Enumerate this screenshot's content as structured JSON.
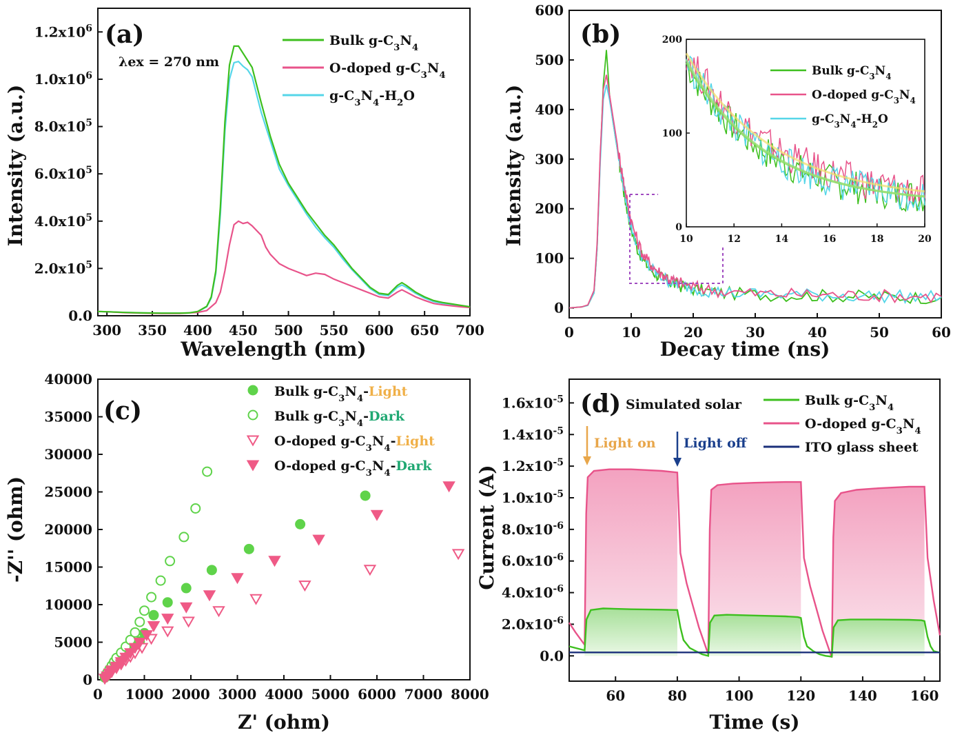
{
  "chart_data": [
    {
      "type": "line",
      "panel_label": "(a)",
      "xlabel": "Wavelength (nm)",
      "ylabel": "Intensity (a.u.)",
      "xlim": [
        290,
        700
      ],
      "ylim": [
        0,
        1300000
      ],
      "xticks": [
        "300",
        "350",
        "400",
        "450",
        "500",
        "550",
        "600",
        "650",
        "700"
      ],
      "yticks": [
        "0.0",
        "2.0x10^5",
        "4.0x10^5",
        "6.0x10^5",
        "8.0x10^5",
        "1.0x10^6",
        "1.2x10^6"
      ],
      "annotation": "λex = 270 nm",
      "series": [
        {
          "name": "Bulk g-C3N4",
          "color": "#3dbf1e",
          "x": [
            290,
            300,
            320,
            340,
            360,
            380,
            390,
            400,
            410,
            415,
            420,
            425,
            430,
            435,
            440,
            445,
            450,
            455,
            460,
            470,
            480,
            490,
            500,
            510,
            520,
            530,
            540,
            550,
            560,
            570,
            580,
            590,
            600,
            610,
            620,
            625,
            630,
            640,
            650,
            660,
            670,
            680,
            690,
            700
          ],
          "y": [
            18000,
            17000,
            14000,
            12000,
            11000,
            11000,
            12000,
            18000,
            40000,
            80000,
            190000,
            460000,
            820000,
            1060000,
            1140000,
            1140000,
            1110000,
            1080000,
            1050000,
            900000,
            760000,
            640000,
            560000,
            500000,
            440000,
            390000,
            340000,
            300000,
            250000,
            200000,
            160000,
            120000,
            95000,
            90000,
            128000,
            140000,
            128000,
            100000,
            80000,
            64000,
            56000,
            50000,
            44000,
            38000
          ]
        },
        {
          "name": "O-doped g-C3N4",
          "color": "#e8538a",
          "x": [
            290,
            300,
            320,
            340,
            360,
            380,
            400,
            410,
            420,
            425,
            430,
            435,
            440,
            445,
            450,
            455,
            460,
            470,
            475,
            480,
            490,
            500,
            510,
            520,
            530,
            540,
            550,
            560,
            570,
            580,
            590,
            600,
            610,
            620,
            625,
            630,
            640,
            650,
            660,
            670,
            680,
            690,
            700
          ],
          "y": [
            18000,
            17000,
            13000,
            11000,
            10000,
            10000,
            14000,
            22000,
            55000,
            100000,
            190000,
            300000,
            385000,
            400000,
            390000,
            395000,
            380000,
            340000,
            290000,
            260000,
            220000,
            200000,
            185000,
            170000,
            180000,
            175000,
            155000,
            140000,
            125000,
            110000,
            95000,
            80000,
            75000,
            100000,
            110000,
            100000,
            80000,
            65000,
            52000,
            46000,
            42000,
            38000,
            35000
          ]
        },
        {
          "name": "g-C3N4-H2O",
          "color": "#55d6e8",
          "x": [
            290,
            300,
            320,
            340,
            360,
            380,
            390,
            400,
            410,
            415,
            420,
            425,
            430,
            435,
            440,
            445,
            450,
            455,
            460,
            470,
            480,
            490,
            500,
            510,
            520,
            530,
            540,
            550,
            560,
            570,
            580,
            590,
            600,
            610,
            620,
            625,
            630,
            640,
            650,
            660,
            670,
            680,
            690,
            700
          ],
          "y": [
            18000,
            17000,
            14000,
            12000,
            11000,
            11000,
            12000,
            17000,
            38000,
            75000,
            180000,
            430000,
            780000,
            1000000,
            1070000,
            1075000,
            1055000,
            1040000,
            1010000,
            860000,
            740000,
            620000,
            550000,
            490000,
            430000,
            375000,
            330000,
            290000,
            240000,
            195000,
            155000,
            115000,
            90000,
            85000,
            120000,
            130000,
            120000,
            95000,
            75000,
            60000,
            52000,
            47000,
            42000,
            37000
          ]
        }
      ]
    },
    {
      "type": "line",
      "panel_label": "(b)",
      "xlabel": "Decay time (ns)",
      "ylabel": "Intensity (a.u.)",
      "xlim": [
        0,
        60
      ],
      "ylim": [
        -20,
        600
      ],
      "xticks": [
        "0",
        "10",
        "20",
        "30",
        "40",
        "50",
        "60"
      ],
      "yticks": [
        "0",
        "100",
        "200",
        "300",
        "400",
        "500",
        "600"
      ],
      "series": [
        {
          "name": "Bulk g-C3N4",
          "color": "#3dbf1e",
          "x": [
            0,
            2,
            3,
            4,
            4.5,
            5,
            5.5,
            6,
            6.5,
            7,
            7.5,
            8,
            8.5,
            9,
            9.5,
            10,
            11,
            12,
            13,
            14,
            15,
            16,
            17,
            18,
            20,
            22,
            25,
            30,
            35,
            40,
            45,
            50,
            55,
            60
          ],
          "y": [
            0,
            2,
            5,
            30,
            120,
            300,
            450,
            520,
            430,
            380,
            340,
            300,
            260,
            220,
            190,
            160,
            120,
            95,
            80,
            68,
            60,
            54,
            48,
            44,
            38,
            34,
            30,
            27,
            26,
            25,
            24,
            23,
            22,
            21
          ]
        },
        {
          "name": "O-doped g-C3N4",
          "color": "#e8538a",
          "x": [
            0,
            2,
            3,
            4,
            4.5,
            5,
            5.5,
            6,
            6.5,
            7,
            7.5,
            8,
            8.5,
            9,
            9.5,
            10,
            11,
            12,
            13,
            14,
            15,
            16,
            17,
            18,
            20,
            22,
            25,
            30,
            35,
            40,
            45,
            50,
            55,
            60
          ],
          "y": [
            0,
            2,
            6,
            35,
            130,
            310,
            440,
            470,
            430,
            390,
            350,
            310,
            275,
            240,
            205,
            175,
            135,
            105,
            90,
            78,
            68,
            60,
            54,
            50,
            43,
            38,
            33,
            29,
            28,
            27,
            26,
            25,
            24,
            23
          ]
        },
        {
          "name": "g-C3N4-H2O",
          "color": "#55d6e8",
          "x": [
            0,
            2,
            3,
            4,
            4.5,
            5,
            5.5,
            6,
            6.5,
            7,
            7.5,
            8,
            8.5,
            9,
            9.5,
            10,
            11,
            12,
            13,
            14,
            15,
            16,
            17,
            18,
            20,
            22,
            25,
            30,
            35,
            40,
            45,
            50,
            55,
            60
          ],
          "y": [
            0,
            2,
            5,
            30,
            120,
            290,
            420,
            450,
            420,
            380,
            340,
            300,
            265,
            230,
            195,
            165,
            125,
            98,
            82,
            70,
            62,
            55,
            50,
            46,
            40,
            35,
            31,
            28,
            27,
            26,
            25,
            24,
            23,
            22
          ]
        }
      ],
      "inset": {
        "xlim": [
          10,
          20
        ],
        "ylim": [
          0,
          200
        ],
        "xticks": [
          "10",
          "12",
          "14",
          "16",
          "18",
          "20"
        ],
        "yticks": [
          "0",
          "100",
          "200"
        ],
        "series_names": [
          "Bulk g-C3N4",
          "O-doped g-C3N4",
          "g-C3N4-H2O"
        ],
        "decay": [
          {
            "name": "Bulk g-C3N4",
            "y0": 175,
            "tau": 3.3,
            "offset": 25
          },
          {
            "name": "O-doped g-C3N4",
            "y0": 185,
            "tau": 3.6,
            "offset": 28
          },
          {
            "name": "g-C3N4-H2O",
            "y0": 178,
            "tau": 3.3,
            "offset": 25
          }
        ]
      }
    },
    {
      "type": "scatter",
      "panel_label": "(c)",
      "xlabel": "Z' (ohm)",
      "ylabel": "-Z'' (ohm)",
      "xlim": [
        0,
        8000
      ],
      "ylim": [
        0,
        40000
      ],
      "xticks": [
        "0",
        "1000",
        "2000",
        "3000",
        "4000",
        "5000",
        "6000",
        "7000",
        "8000"
      ],
      "yticks": [
        "0",
        "5000",
        "10000",
        "15000",
        "20000",
        "25000",
        "30000",
        "35000",
        "40000"
      ],
      "series": [
        {
          "name": "Bulk g-C3N4-Light",
          "marker": "circle-filled",
          "color": "#5fd34a",
          "x": [
            150,
            200,
            250,
            300,
            400,
            500,
            600,
            700,
            800,
            900,
            1000,
            1200,
            1500,
            1900,
            2450,
            3250,
            4350,
            5750
          ],
          "y": [
            300,
            700,
            1100,
            1500,
            2100,
            2700,
            3300,
            3900,
            4500,
            5100,
            6200,
            8600,
            10300,
            12200,
            14600,
            17400,
            20700,
            24500
          ]
        },
        {
          "name": "Bulk g-C3N4-Dark",
          "marker": "circle-open",
          "color": "#5fd34a",
          "x": [
            150,
            200,
            250,
            300,
            350,
            400,
            500,
            600,
            700,
            800,
            900,
            1000,
            1150,
            1350,
            1550,
            1850,
            2100,
            2350
          ],
          "y": [
            400,
            900,
            1400,
            1900,
            2400,
            2900,
            3600,
            4400,
            5300,
            6300,
            7700,
            9200,
            11000,
            13200,
            15800,
            19000,
            22800,
            27700
          ]
        },
        {
          "name": "O-doped g-C3N4-Light",
          "marker": "triangle-open",
          "color": "#ef5a86",
          "x": [
            150,
            200,
            250,
            300,
            400,
            500,
            600,
            700,
            800,
            950,
            1150,
            1500,
            1950,
            2600,
            3400,
            4450,
            5850,
            7750
          ],
          "y": [
            200,
            500,
            800,
            1100,
            1600,
            2100,
            2600,
            3100,
            3600,
            4300,
            5500,
            6500,
            7800,
            9200,
            10800,
            12600,
            14700,
            16800
          ]
        },
        {
          "name": "O-doped g-C3N4-Dark",
          "marker": "triangle-filled",
          "color": "#ef5a86",
          "x": [
            150,
            200,
            250,
            300,
            400,
            500,
            600,
            700,
            800,
            900,
            1050,
            1200,
            1500,
            1900,
            2400,
            3000,
            3800,
            4750,
            6000,
            7550
          ],
          "y": [
            200,
            500,
            900,
            1300,
            1800,
            2400,
            3000,
            3600,
            4300,
            5000,
            6000,
            7200,
            8200,
            9700,
            11300,
            13600,
            15900,
            18700,
            22000,
            25800
          ]
        }
      ],
      "legend_colors": {
        "Light": "#f0b048",
        "Dark": "#1fa872"
      }
    },
    {
      "type": "line",
      "panel_label": "(d)",
      "xlabel": "Time (s)",
      "ylabel": "Current (A)",
      "xlim": [
        45,
        165
      ],
      "ylim": [
        -1.6e-06,
        1.75e-05
      ],
      "xticks": [
        "60",
        "80",
        "100",
        "120",
        "140",
        "160"
      ],
      "yticks": [
        "0.0",
        "2.0x10^-6",
        "4.0x10^-6",
        "6.0x10^-6",
        "8.0x10^-6",
        "1.0x10^-5",
        "1.2x10^-5",
        "1.4x10^-5",
        "1.6x10^-5"
      ],
      "annotations": {
        "title": "Simulated solar",
        "light_on": "Light on",
        "light_off": "Light off"
      },
      "annotation_colors": {
        "light_on": "#e8a64a",
        "light_off": "#1a3f8c"
      },
      "series": [
        {
          "name": "Bulk g-C3N4",
          "color": "#3dbf1e",
          "x": [
            45,
            48,
            50,
            50.6,
            52,
            56,
            65,
            75,
            80,
            81,
            82,
            84,
            86,
            88,
            90,
            90.6,
            92,
            96,
            105,
            115,
            119,
            120,
            121,
            122,
            124,
            126,
            128,
            130,
            130.6,
            132,
            136,
            145,
            155,
            159,
            160,
            161,
            162,
            163,
            165
          ],
          "y": [
            6e-07,
            4.5e-07,
            3.5e-07,
            2.3e-06,
            2.9e-06,
            3e-06,
            2.95e-06,
            2.92e-06,
            2.9e-06,
            1.8e-06,
            1e-06,
            5e-07,
            3e-07,
            1e-07,
            0,
            2.1e-06,
            2.55e-06,
            2.6e-06,
            2.55e-06,
            2.5e-06,
            2.45e-06,
            2.4e-06,
            1.2e-06,
            6e-07,
            3e-07,
            1e-07,
            0,
            -5e-08,
            1.8e-06,
            2.25e-06,
            2.3e-06,
            2.3e-06,
            2.28e-06,
            2.25e-06,
            2.2e-06,
            1.2e-06,
            6e-07,
            3e-07,
            2e-07
          ]
        },
        {
          "name": "O-doped g-C3N4",
          "color": "#e8538a",
          "x": [
            45,
            47,
            50,
            50.5,
            51,
            53,
            58,
            65,
            75,
            80,
            80.5,
            81,
            83,
            85,
            87,
            90,
            90.5,
            91,
            93,
            98,
            105,
            115,
            120,
            120.5,
            121,
            123,
            125,
            127,
            130,
            130.5,
            131,
            133,
            138,
            145,
            155,
            160,
            160.5,
            161,
            163,
            165
          ],
          "y": [
            2.1e-06,
            1.5e-06,
            7e-07,
            9e-06,
            1.13e-05,
            1.17e-05,
            1.18e-05,
            1.18e-05,
            1.17e-05,
            1.16e-05,
            9e-06,
            6.5e-06,
            4.6e-06,
            3.2e-06,
            1.8e-06,
            1e-07,
            8e-06,
            1.05e-05,
            1.08e-05,
            1.09e-05,
            1.095e-05,
            1.1e-05,
            1.1e-05,
            8.5e-06,
            6.2e-06,
            4.4e-06,
            3e-06,
            1.6e-06,
            -1e-07,
            7.5e-06,
            9.8e-06,
            1.03e-05,
            1.05e-05,
            1.06e-05,
            1.07e-05,
            1.07e-05,
            8.5e-06,
            6.2e-06,
            3.5e-06,
            1.3e-06
          ]
        },
        {
          "name": "ITO glass sheet",
          "color": "#1a2f7a",
          "x": [
            45,
            165
          ],
          "y": [
            2.2e-07,
            2.2e-07
          ]
        }
      ]
    }
  ]
}
